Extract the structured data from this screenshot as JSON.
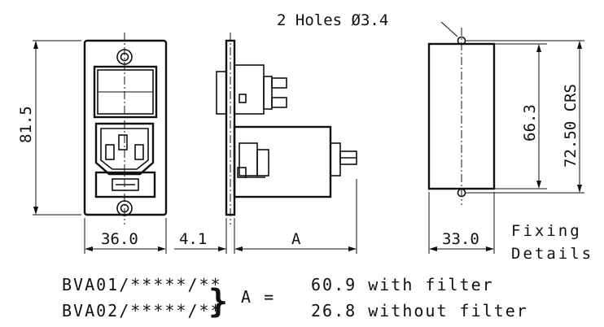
{
  "holes_note": "2 Holes Ø3.4",
  "dimensions": {
    "height_total": "81.5",
    "width_front": "36.0",
    "flange_thickness": "4.1",
    "depth": "A",
    "fixing_width": "33.0",
    "hole_spacing_inner": "66.3",
    "hole_spacing_crs": "72.50 CRS"
  },
  "fixing_label_line1": "Fixing",
  "fixing_label_line2": "Details",
  "models": [
    "BVA01/*****/**",
    "BVA02/*****/**"
  ],
  "brace": "}",
  "a_equals": "A =",
  "a_options": [
    "60.9 with filter",
    "26.8 without filter"
  ]
}
